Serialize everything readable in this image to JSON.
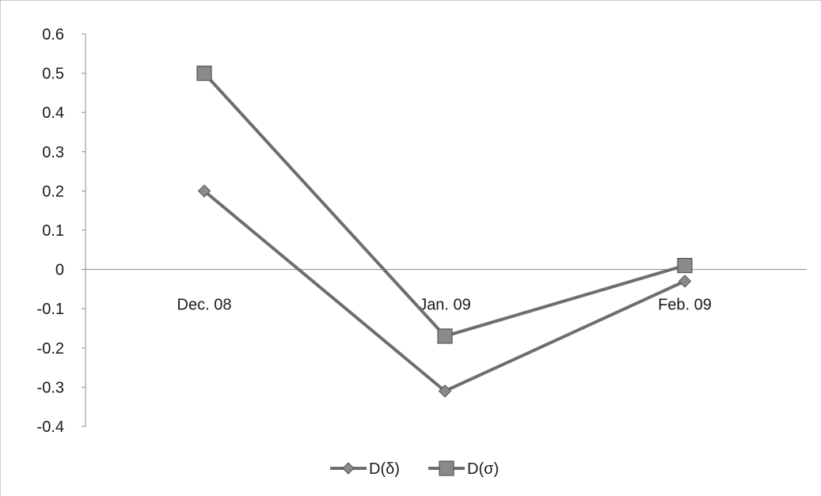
{
  "chart_data": {
    "type": "line",
    "categories": [
      "Dec. 08",
      "Jan. 09",
      "Feb. 09"
    ],
    "ylim": [
      -0.4,
      0.6
    ],
    "yticks": [
      0.6,
      0.5,
      0.4,
      0.3,
      0.2,
      0.1,
      0,
      -0.1,
      -0.2,
      -0.3,
      -0.4
    ],
    "ytick_labels": [
      "0.6",
      "0.5",
      "0.4",
      "0.3",
      "0.2",
      "0.1",
      "0",
      "-0.1",
      "-0.2",
      "-0.3",
      "-0.4"
    ],
    "series": [
      {
        "name": "D(δ)",
        "marker": "diamond",
        "values": [
          0.2,
          -0.31,
          -0.03
        ]
      },
      {
        "name": "D(σ)",
        "marker": "square",
        "values": [
          0.5,
          -0.17,
          0.01
        ]
      }
    ],
    "legend_position": "bottom",
    "grid": false,
    "colors": {
      "line": "#6e6e6e",
      "marker_fill": "#8a8a8a",
      "marker_stroke": "#555555",
      "axis": "#8c8c8c"
    }
  }
}
